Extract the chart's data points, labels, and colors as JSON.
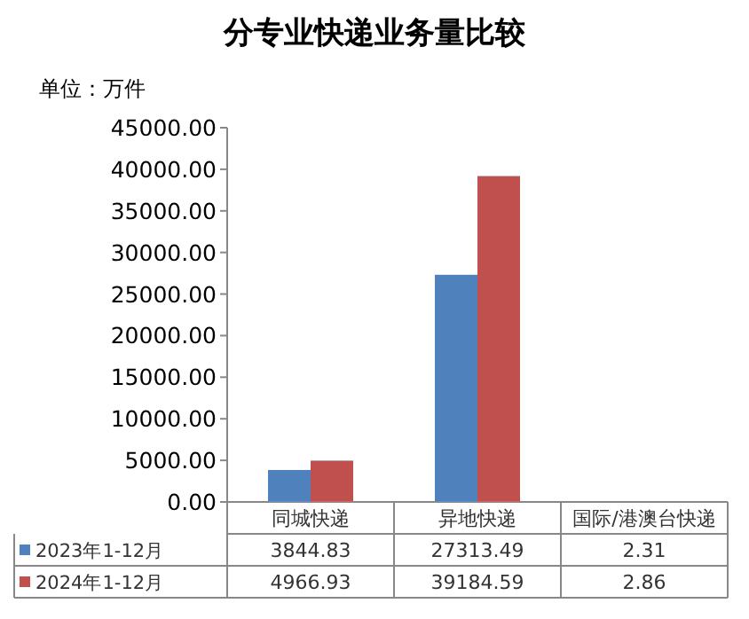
{
  "chart_data": {
    "type": "bar",
    "title": "分专业快递业务量比较",
    "ylabel": "单位：万件",
    "categories": [
      "同城快递",
      "异地快递",
      "国际/港澳台快递"
    ],
    "series": [
      {
        "name": "2023年1-12月",
        "color": "#4f81bd",
        "values": [
          3844.83,
          27313.49,
          2.31
        ]
      },
      {
        "name": "2024年1-12月",
        "color": "#c0504d",
        "values": [
          4966.93,
          39184.59,
          2.86
        ]
      }
    ],
    "ylim": [
      0,
      45000
    ],
    "yticks": [
      {
        "value": 0,
        "label": "0.00"
      },
      {
        "value": 5000,
        "label": "5000.00"
      },
      {
        "value": 10000,
        "label": "10000.00"
      },
      {
        "value": 15000,
        "label": "15000.00"
      },
      {
        "value": 20000,
        "label": "20000.00"
      },
      {
        "value": 25000,
        "label": "25000.00"
      },
      {
        "value": 30000,
        "label": "30000.00"
      },
      {
        "value": 35000,
        "label": "35000.00"
      },
      {
        "value": 40000,
        "label": "40000.00"
      },
      {
        "value": 45000,
        "label": "45000.00"
      }
    ],
    "data_labels": true,
    "legend": "bottom",
    "grid": false
  }
}
